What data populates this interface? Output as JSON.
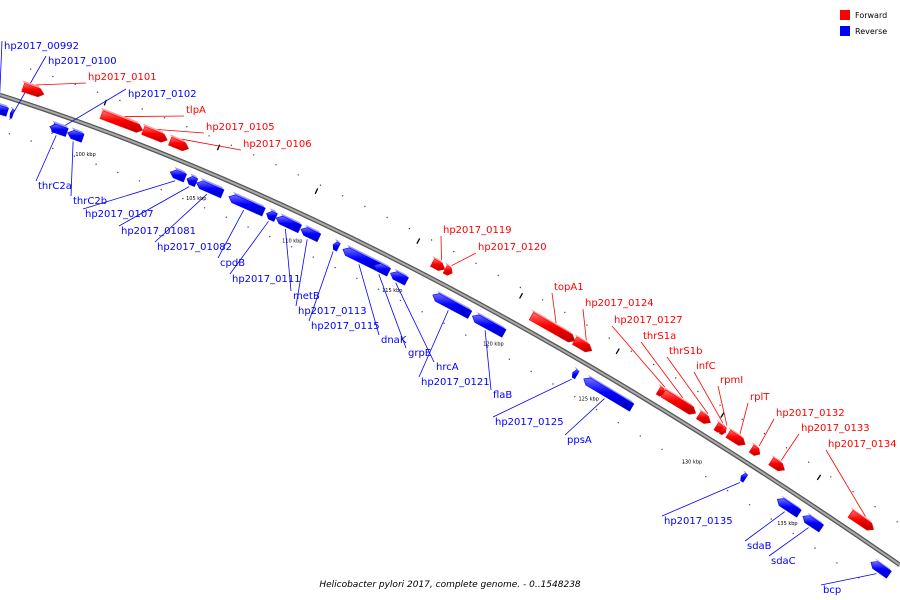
{
  "caption": "Helicobacter pylori 2017, complete genome. - 0..1548238",
  "legend": [
    {
      "label": "Forward",
      "color": "#ff0000"
    },
    {
      "label": "Reverse",
      "color": "#0000ff"
    }
  ],
  "colors": {
    "forward": "#ff0000",
    "reverse": "#0000ff",
    "backbone": "#888888"
  },
  "ticks": [
    "100 kbp",
    "105 kbp",
    "110 kbp",
    "115 kbp",
    "120 kbp",
    "125 kbp",
    "130 kbp",
    "135 kbp"
  ],
  "genes": [
    {
      "name": "hp2017_00992",
      "strand": "reverse"
    },
    {
      "name": "hp2017_0100",
      "strand": "reverse"
    },
    {
      "name": "hp2017_0101",
      "strand": "forward"
    },
    {
      "name": "hp2017_0102",
      "strand": "reverse"
    },
    {
      "name": "tlpA",
      "strand": "forward"
    },
    {
      "name": "hp2017_0105",
      "strand": "forward"
    },
    {
      "name": "hp2017_0106",
      "strand": "forward"
    },
    {
      "name": "thrC2a",
      "strand": "reverse"
    },
    {
      "name": "thrC2b",
      "strand": "reverse"
    },
    {
      "name": "hp2017_0107",
      "strand": "reverse"
    },
    {
      "name": "hp2017_01081",
      "strand": "reverse"
    },
    {
      "name": "hp2017_01082",
      "strand": "reverse"
    },
    {
      "name": "cpdB",
      "strand": "reverse"
    },
    {
      "name": "hp2017_0111",
      "strand": "reverse"
    },
    {
      "name": "metB",
      "strand": "reverse"
    },
    {
      "name": "hp2017_0113",
      "strand": "reverse"
    },
    {
      "name": "hp2017_0115",
      "strand": "reverse"
    },
    {
      "name": "dnaK",
      "strand": "reverse"
    },
    {
      "name": "grpE",
      "strand": "reverse"
    },
    {
      "name": "hrcA",
      "strand": "reverse"
    },
    {
      "name": "hp2017_0121",
      "strand": "reverse"
    },
    {
      "name": "flaB",
      "strand": "reverse"
    },
    {
      "name": "hp2017_0119",
      "strand": "forward"
    },
    {
      "name": "hp2017_0120",
      "strand": "forward"
    },
    {
      "name": "topA1",
      "strand": "forward"
    },
    {
      "name": "hp2017_0124",
      "strand": "forward"
    },
    {
      "name": "hp2017_0125",
      "strand": "reverse"
    },
    {
      "name": "ppsA",
      "strand": "reverse"
    },
    {
      "name": "hp2017_0127",
      "strand": "forward"
    },
    {
      "name": "thrS1a",
      "strand": "forward"
    },
    {
      "name": "thrS1b",
      "strand": "forward"
    },
    {
      "name": "infC",
      "strand": "forward"
    },
    {
      "name": "rpmI",
      "strand": "forward"
    },
    {
      "name": "rplT",
      "strand": "forward"
    },
    {
      "name": "hp2017_0132",
      "strand": "forward"
    },
    {
      "name": "hp2017_0133",
      "strand": "forward"
    },
    {
      "name": "hp2017_0134",
      "strand": "forward"
    },
    {
      "name": "hp2017_0135",
      "strand": "reverse"
    },
    {
      "name": "sdaB",
      "strand": "reverse"
    },
    {
      "name": "sdaC",
      "strand": "reverse"
    },
    {
      "name": "bcp",
      "strand": "reverse"
    }
  ]
}
